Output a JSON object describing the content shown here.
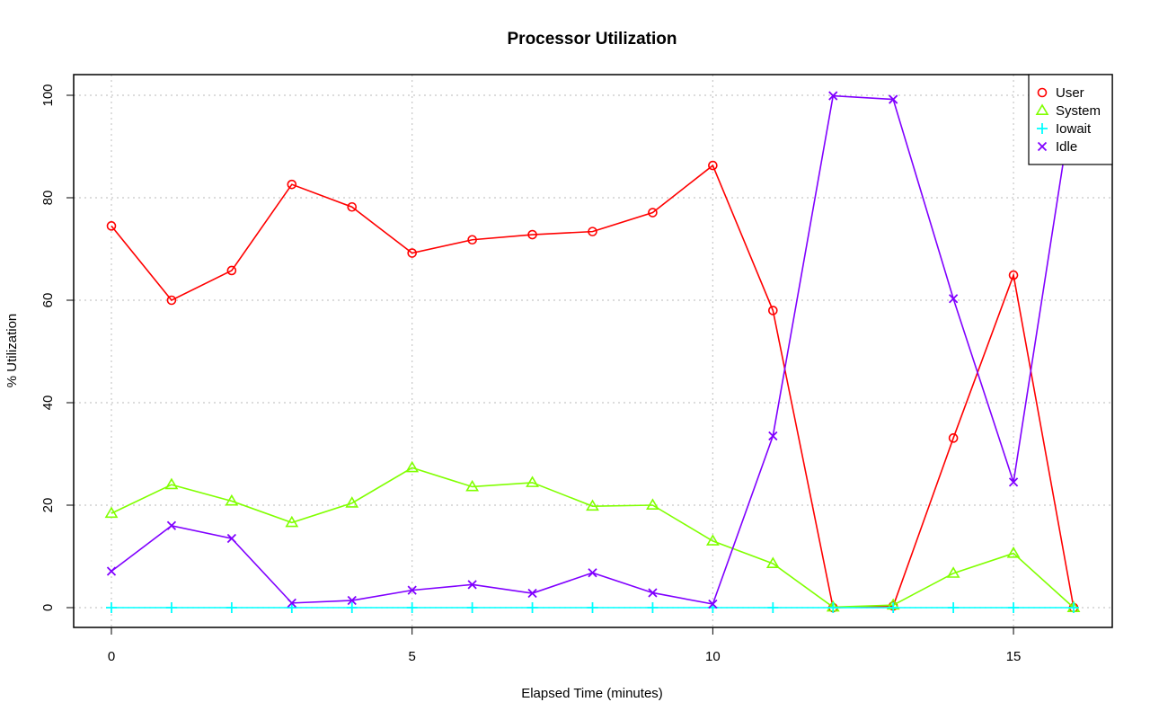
{
  "chart_data": {
    "type": "line",
    "title": "Processor Utilization",
    "xlabel": "Elapsed Time (minutes)",
    "ylabel": "% Utilization",
    "x": [
      0,
      1,
      2,
      3,
      4,
      5,
      6,
      7,
      8,
      9,
      10,
      11,
      12,
      13,
      14,
      15,
      16
    ],
    "xlim": [
      -0.6,
      16.6
    ],
    "ylim": [
      -4,
      104
    ],
    "x_ticks": [
      0,
      5,
      10,
      15
    ],
    "y_ticks": [
      0,
      20,
      40,
      60,
      80,
      100
    ],
    "grid": true,
    "legend_position": "top-right",
    "series": [
      {
        "name": "User",
        "color": "#ff0000",
        "marker": "circle",
        "values": [
          74.5,
          60.0,
          65.8,
          82.6,
          78.2,
          69.2,
          71.8,
          72.8,
          73.4,
          77.1,
          86.3,
          58.0,
          0.0,
          0.3,
          33.1,
          64.9,
          0.0
        ]
      },
      {
        "name": "System",
        "color": "#80ff00",
        "marker": "triangle",
        "values": [
          18.4,
          24.0,
          20.8,
          16.6,
          20.4,
          27.3,
          23.6,
          24.4,
          19.8,
          20.0,
          13.0,
          8.6,
          0.1,
          0.5,
          6.7,
          10.6,
          0.0
        ]
      },
      {
        "name": "Iowait",
        "color": "#00ffff",
        "marker": "plus",
        "values": [
          0,
          0,
          0,
          0,
          0,
          0,
          0,
          0,
          0,
          0,
          0,
          0,
          0,
          0,
          0,
          0,
          0
        ]
      },
      {
        "name": "Idle",
        "color": "#8000ff",
        "marker": "x",
        "values": [
          7.1,
          16.0,
          13.5,
          0.9,
          1.4,
          3.4,
          4.5,
          2.8,
          6.8,
          2.9,
          0.7,
          33.5,
          99.9,
          99.2,
          60.3,
          24.5,
          100.0
        ]
      }
    ]
  }
}
